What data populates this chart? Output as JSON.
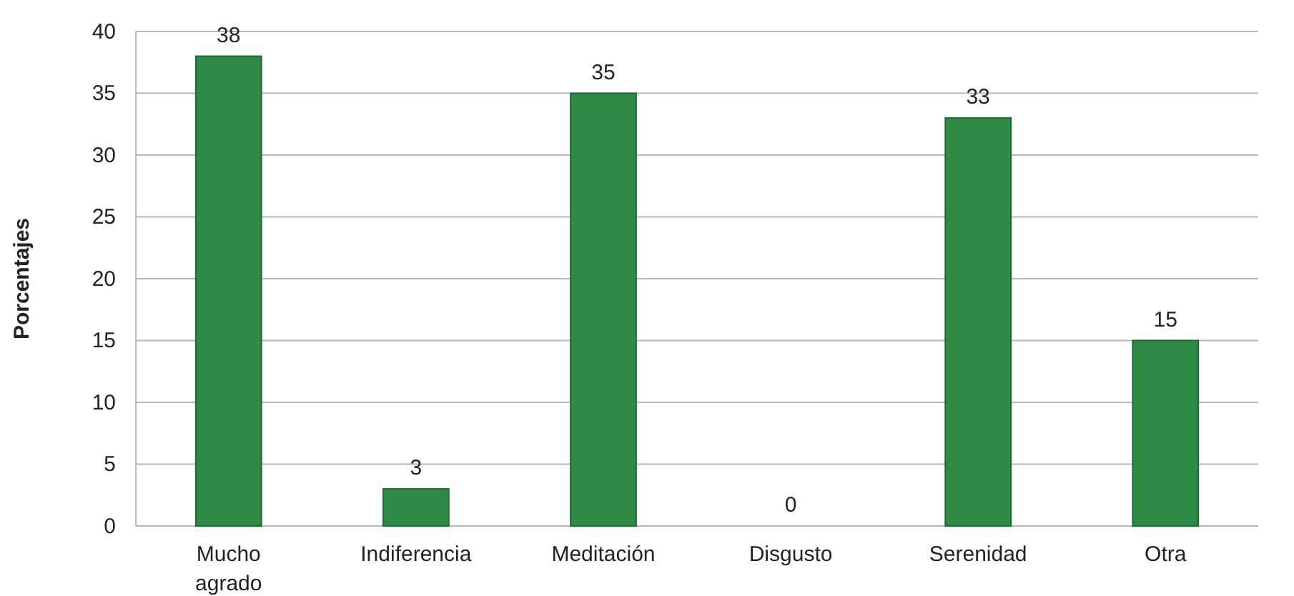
{
  "chart_data": {
    "type": "bar",
    "ylabel": "Porcentajes",
    "categories": [
      "Mucho agrado",
      "Indiferencia",
      "Meditación",
      "Disgusto",
      "Serenidad",
      "Otra"
    ],
    "values": [
      38,
      3,
      35,
      0,
      33,
      15
    ],
    "color": "#2f8a45",
    "ylim": [
      0,
      40
    ],
    "yticks": [
      0,
      5,
      10,
      15,
      20,
      25,
      30,
      35,
      40
    ],
    "grid": "y",
    "data_labels": true
  }
}
